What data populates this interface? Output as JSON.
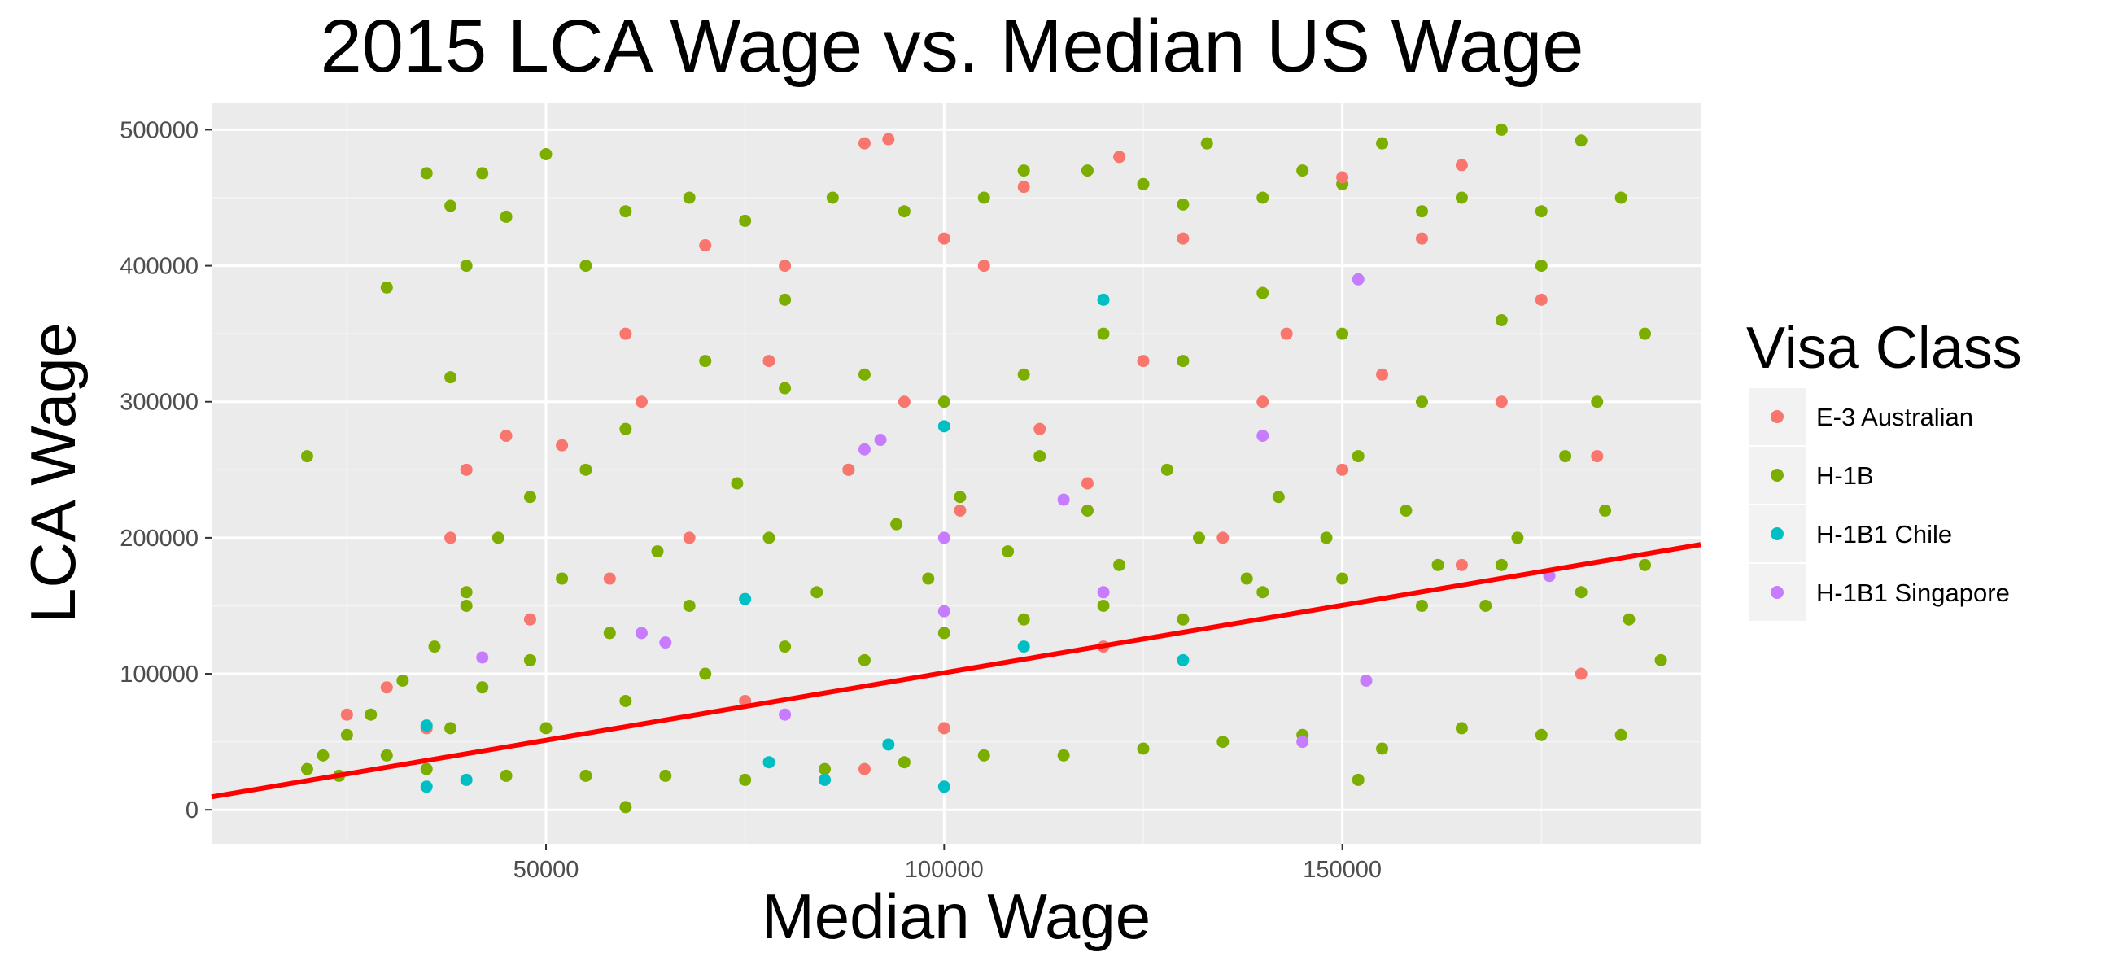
{
  "chart_data": {
    "type": "scatter",
    "title": "2015 LCA Wage vs. Median US Wage",
    "xlabel": "Median Wage",
    "ylabel": "LCA Wage",
    "xlim": [
      8000,
      195000
    ],
    "ylim": [
      -25000,
      520000
    ],
    "x_ticks": [
      50000,
      100000,
      150000
    ],
    "x_tick_labels": [
      "50000",
      "100000",
      "150000"
    ],
    "y_ticks": [
      0,
      100000,
      200000,
      300000,
      400000,
      500000
    ],
    "y_tick_labels": [
      "0",
      "100000",
      "200000",
      "300000",
      "400000",
      "500000"
    ],
    "grid": true,
    "background": "#ebebeb",
    "legend": {
      "title": "Visa Class",
      "position": "right",
      "entries": [
        {
          "label": "E-3 Australian",
          "color": "#f8766d"
        },
        {
          "label": "H-1B",
          "color": "#7cae00"
        },
        {
          "label": "H-1B1 Chile",
          "color": "#00bfc4"
        },
        {
          "label": "H-1B1 Singapore",
          "color": "#c77cff"
        }
      ]
    },
    "trend_line": {
      "color": "#ff0000",
      "points": [
        [
          8000,
          9500
        ],
        [
          195000,
          195000
        ]
      ]
    },
    "series": [
      {
        "name": "H-1B",
        "color": "#7cae00",
        "points": [
          [
            20000,
            260000
          ],
          [
            30000,
            384000
          ],
          [
            35000,
            468000
          ],
          [
            38000,
            444000
          ],
          [
            42000,
            468000
          ],
          [
            45000,
            436000
          ],
          [
            50000,
            482000
          ],
          [
            38000,
            318000
          ],
          [
            40000,
            160000
          ],
          [
            40000,
            400000
          ],
          [
            55000,
            400000
          ],
          [
            60000,
            440000
          ],
          [
            68000,
            450000
          ],
          [
            75000,
            433000
          ],
          [
            80000,
            375000
          ],
          [
            86000,
            450000
          ],
          [
            95000,
            440000
          ],
          [
            105000,
            450000
          ],
          [
            110000,
            470000
          ],
          [
            118000,
            470000
          ],
          [
            125000,
            460000
          ],
          [
            130000,
            445000
          ],
          [
            133000,
            490000
          ],
          [
            140000,
            450000
          ],
          [
            145000,
            470000
          ],
          [
            150000,
            460000
          ],
          [
            155000,
            490000
          ],
          [
            160000,
            440000
          ],
          [
            165000,
            450000
          ],
          [
            170000,
            500000
          ],
          [
            175000,
            440000
          ],
          [
            180000,
            492000
          ],
          [
            185000,
            450000
          ],
          [
            188000,
            350000
          ],
          [
            175000,
            400000
          ],
          [
            182000,
            300000
          ],
          [
            170000,
            360000
          ],
          [
            160000,
            300000
          ],
          [
            150000,
            350000
          ],
          [
            140000,
            380000
          ],
          [
            130000,
            330000
          ],
          [
            120000,
            350000
          ],
          [
            110000,
            320000
          ],
          [
            100000,
            300000
          ],
          [
            90000,
            320000
          ],
          [
            80000,
            310000
          ],
          [
            70000,
            330000
          ],
          [
            60000,
            280000
          ],
          [
            55000,
            250000
          ],
          [
            48000,
            230000
          ],
          [
            44000,
            200000
          ],
          [
            40000,
            150000
          ],
          [
            36000,
            120000
          ],
          [
            32000,
            95000
          ],
          [
            28000,
            70000
          ],
          [
            25000,
            55000
          ],
          [
            22000,
            40000
          ],
          [
            20000,
            30000
          ],
          [
            24000,
            25000
          ],
          [
            30000,
            40000
          ],
          [
            35000,
            30000
          ],
          [
            45000,
            25000
          ],
          [
            55000,
            25000
          ],
          [
            65000,
            25000
          ],
          [
            75000,
            22000
          ],
          [
            85000,
            30000
          ],
          [
            95000,
            35000
          ],
          [
            105000,
            40000
          ],
          [
            115000,
            40000
          ],
          [
            125000,
            45000
          ],
          [
            135000,
            50000
          ],
          [
            145000,
            55000
          ],
          [
            155000,
            45000
          ],
          [
            165000,
            60000
          ],
          [
            175000,
            55000
          ],
          [
            185000,
            55000
          ],
          [
            60000,
            2000
          ],
          [
            152000,
            22000
          ],
          [
            190000,
            110000
          ],
          [
            188000,
            180000
          ],
          [
            183000,
            220000
          ],
          [
            178000,
            260000
          ],
          [
            172000,
            200000
          ],
          [
            168000,
            150000
          ],
          [
            162000,
            180000
          ],
          [
            158000,
            220000
          ],
          [
            152000,
            260000
          ],
          [
            148000,
            200000
          ],
          [
            142000,
            230000
          ],
          [
            138000,
            170000
          ],
          [
            132000,
            200000
          ],
          [
            128000,
            250000
          ],
          [
            122000,
            180000
          ],
          [
            118000,
            220000
          ],
          [
            112000,
            260000
          ],
          [
            108000,
            190000
          ],
          [
            102000,
            230000
          ],
          [
            98000,
            170000
          ],
          [
            94000,
            210000
          ],
          [
            88000,
            250000
          ],
          [
            84000,
            160000
          ],
          [
            78000,
            200000
          ],
          [
            74000,
            240000
          ],
          [
            68000,
            150000
          ],
          [
            64000,
            190000
          ],
          [
            58000,
            130000
          ],
          [
            52000,
            170000
          ],
          [
            48000,
            110000
          ],
          [
            42000,
            90000
          ],
          [
            38000,
            60000
          ],
          [
            50000,
            60000
          ],
          [
            60000,
            80000
          ],
          [
            70000,
            100000
          ],
          [
            80000,
            120000
          ],
          [
            90000,
            110000
          ],
          [
            100000,
            130000
          ],
          [
            110000,
            140000
          ],
          [
            120000,
            150000
          ],
          [
            130000,
            140000
          ],
          [
            140000,
            160000
          ],
          [
            150000,
            170000
          ],
          [
            160000,
            150000
          ],
          [
            170000,
            180000
          ],
          [
            180000,
            160000
          ],
          [
            186000,
            140000
          ]
        ]
      },
      {
        "name": "E-3 Australian",
        "color": "#f8766d",
        "points": [
          [
            90000,
            490000
          ],
          [
            93000,
            493000
          ],
          [
            110000,
            458000
          ],
          [
            122000,
            480000
          ],
          [
            150000,
            465000
          ],
          [
            165000,
            474000
          ],
          [
            70000,
            415000
          ],
          [
            80000,
            400000
          ],
          [
            100000,
            420000
          ],
          [
            105000,
            400000
          ],
          [
            130000,
            420000
          ],
          [
            143000,
            350000
          ],
          [
            160000,
            420000
          ],
          [
            175000,
            375000
          ],
          [
            60000,
            350000
          ],
          [
            52000,
            268000
          ],
          [
            40000,
            250000
          ],
          [
            38000,
            200000
          ],
          [
            45000,
            275000
          ],
          [
            62000,
            300000
          ],
          [
            78000,
            330000
          ],
          [
            95000,
            300000
          ],
          [
            112000,
            280000
          ],
          [
            125000,
            330000
          ],
          [
            140000,
            300000
          ],
          [
            155000,
            320000
          ],
          [
            170000,
            300000
          ],
          [
            182000,
            260000
          ],
          [
            30000,
            90000
          ],
          [
            25000,
            70000
          ],
          [
            35000,
            60000
          ],
          [
            48000,
            140000
          ],
          [
            58000,
            170000
          ],
          [
            68000,
            200000
          ],
          [
            88000,
            250000
          ],
          [
            102000,
            220000
          ],
          [
            118000,
            240000
          ],
          [
            135000,
            200000
          ],
          [
            150000,
            250000
          ],
          [
            165000,
            180000
          ],
          [
            180000,
            100000
          ],
          [
            90000,
            30000
          ],
          [
            100000,
            60000
          ],
          [
            120000,
            120000
          ],
          [
            75000,
            80000
          ]
        ]
      },
      {
        "name": "H-1B1 Chile",
        "color": "#00bfc4",
        "points": [
          [
            35000,
            62000
          ],
          [
            35000,
            17000
          ],
          [
            40000,
            22000
          ],
          [
            78000,
            35000
          ],
          [
            85000,
            22000
          ],
          [
            93000,
            48000
          ],
          [
            100000,
            17000
          ],
          [
            120000,
            375000
          ],
          [
            100000,
            282000
          ],
          [
            110000,
            120000
          ],
          [
            75000,
            155000
          ],
          [
            130000,
            110000
          ]
        ]
      },
      {
        "name": "H-1B1 Singapore",
        "color": "#c77cff",
        "points": [
          [
            42000,
            112000
          ],
          [
            62000,
            130000
          ],
          [
            65000,
            123000
          ],
          [
            90000,
            265000
          ],
          [
            92000,
            272000
          ],
          [
            100000,
            146000
          ],
          [
            115000,
            228000
          ],
          [
            140000,
            275000
          ],
          [
            145000,
            50000
          ],
          [
            152000,
            390000
          ],
          [
            176000,
            172000
          ],
          [
            100000,
            200000
          ],
          [
            80000,
            70000
          ],
          [
            120000,
            160000
          ],
          [
            153000,
            95000
          ]
        ]
      }
    ]
  }
}
